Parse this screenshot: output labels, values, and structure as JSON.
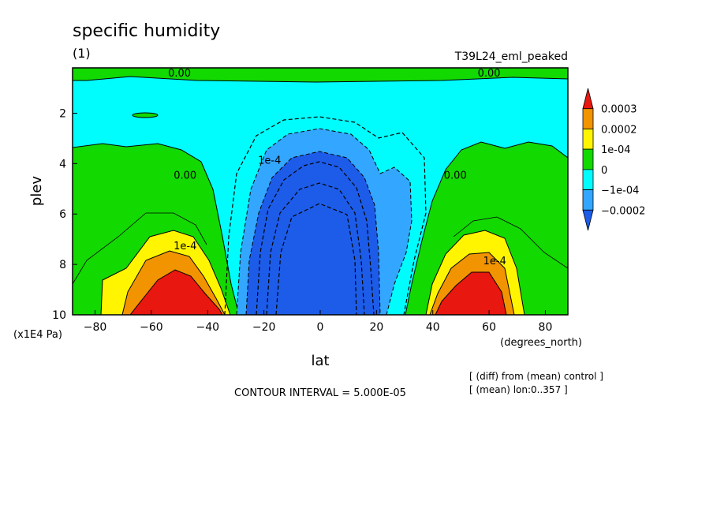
{
  "chart_data": {
    "type": "contour",
    "title": "specific humidity",
    "subtitle": "(1)",
    "experiment": "T39L24_eml_peaked",
    "xlabel": "lat",
    "xunits": "(degrees_north)",
    "ylabel": "plev",
    "yunits": "(x1E4 Pa)",
    "xlim": [
      -88,
      88
    ],
    "ylim": [
      0.2,
      10
    ],
    "y_inverted": true,
    "xticks": [
      -80,
      -60,
      -40,
      -20,
      0,
      20,
      40,
      60,
      80
    ],
    "yticks": [
      2,
      4,
      6,
      8,
      10
    ],
    "contour_interval_label": "CONTOUR INTERVAL = 5.000E-05",
    "notes": [
      "[ (diff) from (mean) control ]",
      "[ (mean) lon:0..357 ]"
    ],
    "colorbar": {
      "labels": [
        "0.0003",
        "0.0002",
        "1e-04",
        "0",
        "−1e-04",
        "−0.0002"
      ],
      "colors": [
        "#e8170f",
        "#f29400",
        "#fff500",
        "#12d900",
        "#00fdfd",
        "#33a6ff",
        "#1c5ce8"
      ]
    },
    "contour_labels": [
      {
        "text": "0.00",
        "x": -50,
        "y": 0.55
      },
      {
        "text": "0.00",
        "x": 60,
        "y": 0.55
      },
      {
        "text": "0.00",
        "x": -48,
        "y": 4.6
      },
      {
        "text": "0.00",
        "x": 48,
        "y": 4.6
      },
      {
        "text": "1e-4",
        "x": -48,
        "y": 7.4
      },
      {
        "text": "1e-4",
        "x": 62,
        "y": 8.0
      },
      {
        "text": "1e-4",
        "x": -18,
        "y": 4.0
      }
    ]
  }
}
